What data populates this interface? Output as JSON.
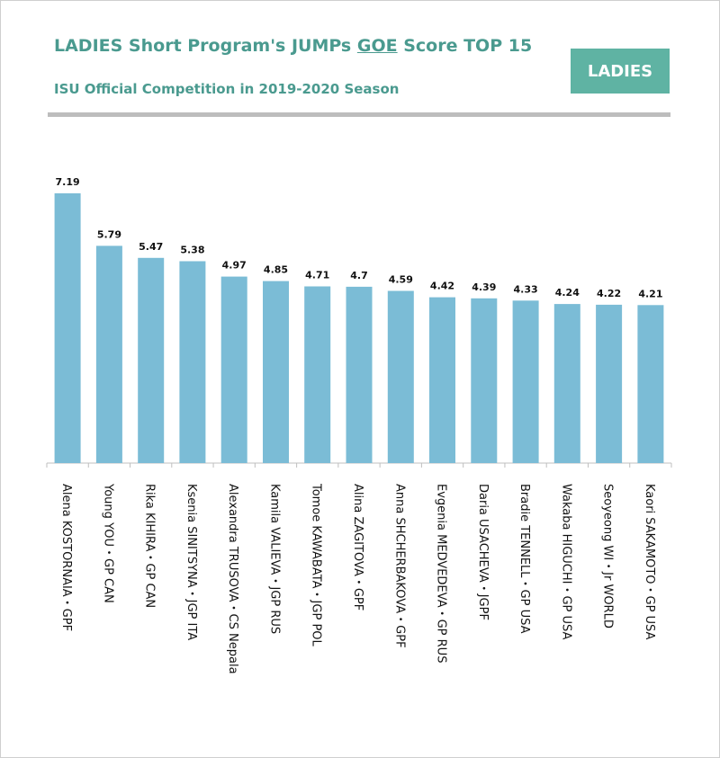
{
  "header": {
    "title_prefix": "LADIES Short Program's JUMPs ",
    "title_underlined": "GOE",
    "title_suffix": " Score TOP 15",
    "subtitle": "ISU Official Competition in 2019-2020 Season",
    "badge": "LADIES"
  },
  "colors": {
    "bar": "#7bbcd6",
    "accent": "#5fb3a3",
    "title": "#4a9a8f",
    "rule": "#bdbdbd"
  },
  "chart_data": {
    "type": "bar",
    "title": "LADIES Short Program's JUMPs GOE Score TOP 15",
    "subtitle": "ISU Official Competition in 2019-2020 Season",
    "xlabel": "",
    "ylabel": "",
    "ylim": [
      0,
      7.19
    ],
    "grid": false,
    "categories": [
      "Alena KOSTORNAIA・GPF",
      "Young YOU・GP CAN",
      "Rika KIHIRA・GP CAN",
      "Ksenia SINITSYNA・JGP ITA",
      "Alexandra TRUSOVA・CS Nepala",
      "Kamila VALIEVA・JGP RUS",
      "Tomoe KAWABATA・JGP POL",
      "Alina ZAGITOVA・GPF",
      "Anna SHCHERBAKOVA・GPF",
      "Evgenia MEDVEDEVA・GP RUS",
      "Daria USACHEVA・JGPF",
      "Bradie TENNELL・GP USA",
      "Wakaba HIGUCHI・GP USA",
      "Seoyeong WI・Jr WORLD",
      "Kaori SAKAMOTO・GP USA"
    ],
    "values": [
      7.19,
      5.79,
      5.47,
      5.38,
      4.97,
      4.85,
      4.71,
      4.7,
      4.59,
      4.42,
      4.39,
      4.33,
      4.24,
      4.22,
      4.21
    ]
  }
}
